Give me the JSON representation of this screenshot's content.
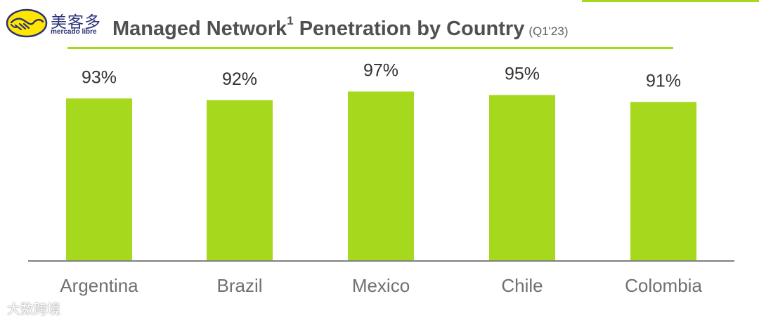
{
  "brand": {
    "cn_name": "美客多",
    "en_name": "mercado libre",
    "badge_icon": "handshake-icon",
    "colors": {
      "badge_fill": "#ffe600",
      "badge_line": "#2d3277"
    }
  },
  "header": {
    "title_main": "Managed Network",
    "title_sup": "1",
    "title_rest": " Penetration by Country",
    "subtitle": "(Q1'23)"
  },
  "watermark": {
    "text": "大数跨境"
  },
  "chart_data": {
    "type": "bar",
    "categories": [
      "Argentina",
      "Brazil",
      "Mexico",
      "Chile",
      "Colombia"
    ],
    "values": [
      93,
      92,
      97,
      95,
      91
    ],
    "value_labels": [
      "93%",
      "92%",
      "97%",
      "95%",
      "91%"
    ],
    "title": "Managed Network¹ Penetration by Country (Q1'23)",
    "xlabel": "",
    "ylabel": "",
    "ylim": [
      0,
      100
    ],
    "unit": "%",
    "grid": false,
    "legend": "none",
    "colors": {
      "bar": "#a6d81e",
      "axis": "#808080",
      "category_label": "#707070",
      "value_label": "#333333"
    }
  }
}
